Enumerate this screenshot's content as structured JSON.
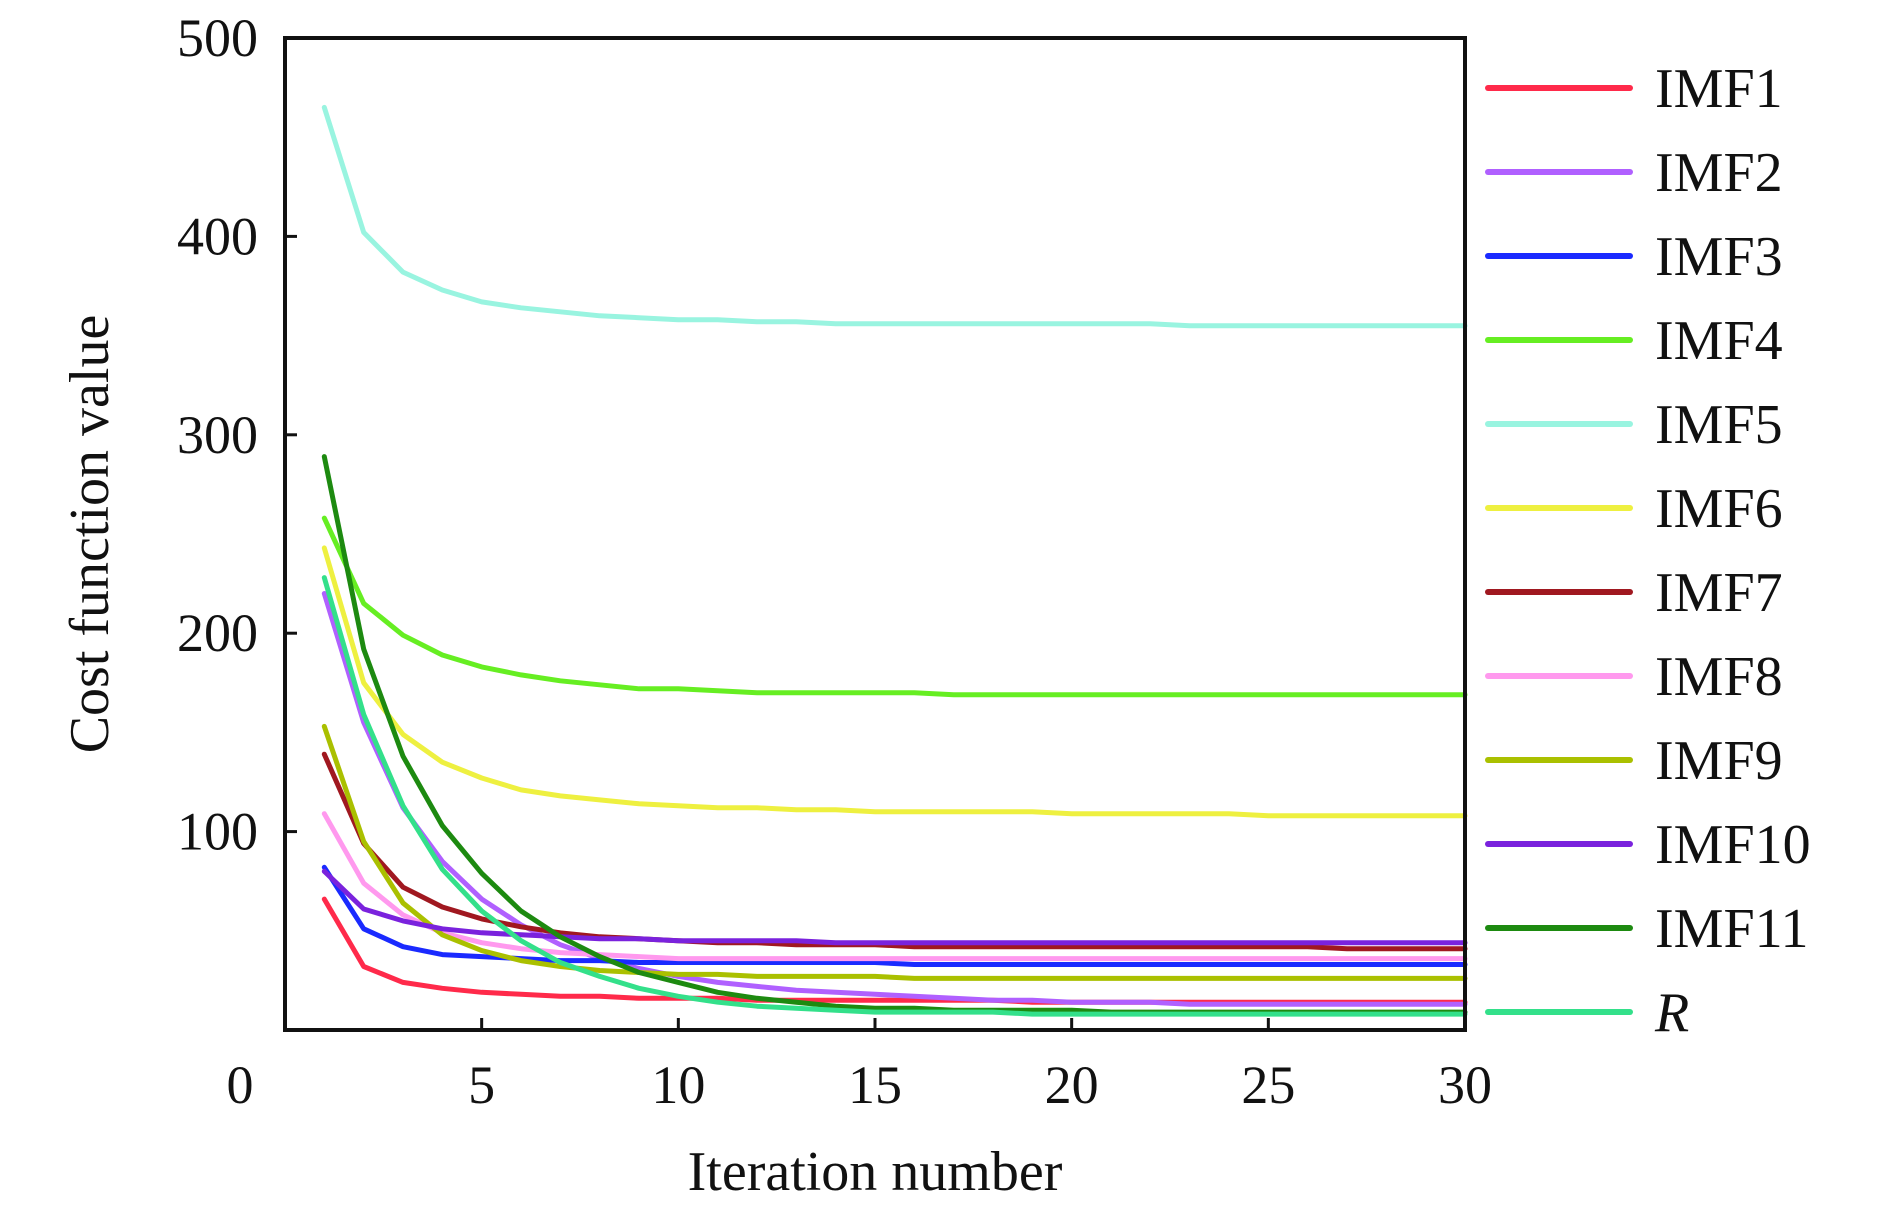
{
  "chart_data": {
    "type": "line",
    "xlabel": "Iteration number",
    "ylabel": "Cost function value",
    "xlim": [
      0,
      30
    ],
    "ylim": [
      0,
      500
    ],
    "xticks": [
      0,
      5,
      10,
      15,
      20,
      25,
      30
    ],
    "yticks": [
      100,
      200,
      300,
      400,
      500
    ],
    "grid": false,
    "legend_position": "right",
    "x": [
      1,
      2,
      3,
      4,
      5,
      6,
      7,
      8,
      9,
      10,
      11,
      12,
      13,
      14,
      15,
      16,
      17,
      18,
      19,
      20,
      21,
      22,
      23,
      24,
      25,
      26,
      27,
      28,
      29,
      30
    ],
    "series": [
      {
        "name": "IMF1",
        "color": "#ff2a4a",
        "values": [
          66,
          32,
          24,
          21,
          19,
          18,
          17,
          17,
          16,
          16,
          16,
          15,
          15,
          15,
          15,
          15,
          15,
          15,
          14,
          14,
          14,
          14,
          14,
          14,
          14,
          14,
          14,
          14,
          14,
          14
        ]
      },
      {
        "name": "IMF2",
        "color": "#b060ff",
        "values": [
          220,
          155,
          112,
          85,
          66,
          53,
          43,
          36,
          31,
          27,
          24,
          22,
          20,
          19,
          18,
          17,
          16,
          15,
          15,
          14,
          14,
          14,
          13,
          13,
          13,
          13,
          13,
          13,
          13,
          13
        ]
      },
      {
        "name": "IMF3",
        "color": "#1a2aff",
        "values": [
          82,
          51,
          42,
          38,
          37,
          36,
          35,
          35,
          34,
          34,
          34,
          34,
          34,
          34,
          34,
          33,
          33,
          33,
          33,
          33,
          33,
          33,
          33,
          33,
          33,
          33,
          33,
          33,
          33,
          33
        ]
      },
      {
        "name": "IMF4",
        "color": "#66ee22",
        "values": [
          258,
          215,
          199,
          189,
          183,
          179,
          176,
          174,
          172,
          172,
          171,
          170,
          170,
          170,
          170,
          170,
          169,
          169,
          169,
          169,
          169,
          169,
          169,
          169,
          169,
          169,
          169,
          169,
          169,
          169
        ]
      },
      {
        "name": "IMF5",
        "color": "#99f4e0",
        "values": [
          465,
          402,
          382,
          373,
          367,
          364,
          362,
          360,
          359,
          358,
          358,
          357,
          357,
          356,
          356,
          356,
          356,
          356,
          356,
          356,
          356,
          356,
          355,
          355,
          355,
          355,
          355,
          355,
          355,
          355
        ]
      },
      {
        "name": "IMF6",
        "color": "#eef040",
        "values": [
          243,
          175,
          149,
          135,
          127,
          121,
          118,
          116,
          114,
          113,
          112,
          112,
          111,
          111,
          110,
          110,
          110,
          110,
          110,
          109,
          109,
          109,
          109,
          109,
          108,
          108,
          108,
          108,
          108,
          108
        ]
      },
      {
        "name": "IMF7",
        "color": "#a01820",
        "values": [
          139,
          94,
          72,
          62,
          56,
          52,
          49,
          47,
          46,
          45,
          44,
          44,
          43,
          43,
          43,
          42,
          42,
          42,
          42,
          42,
          42,
          42,
          42,
          42,
          42,
          42,
          41,
          41,
          41,
          41
        ]
      },
      {
        "name": "IMF8",
        "color": "#ff99ee",
        "values": [
          109,
          74,
          58,
          49,
          44,
          41,
          39,
          38,
          37,
          36,
          36,
          36,
          36,
          36,
          36,
          36,
          36,
          36,
          36,
          36,
          36,
          36,
          36,
          36,
          36,
          36,
          36,
          36,
          36,
          36
        ]
      },
      {
        "name": "IMF9",
        "color": "#aac000",
        "values": [
          153,
          95,
          64,
          48,
          40,
          35,
          32,
          30,
          29,
          28,
          28,
          27,
          27,
          27,
          27,
          26,
          26,
          26,
          26,
          26,
          26,
          26,
          26,
          26,
          26,
          26,
          26,
          26,
          26,
          26
        ]
      },
      {
        "name": "IMF10",
        "color": "#7a22dd",
        "values": [
          80,
          61,
          55,
          51,
          49,
          48,
          47,
          46,
          46,
          45,
          45,
          45,
          45,
          44,
          44,
          44,
          44,
          44,
          44,
          44,
          44,
          44,
          44,
          44,
          44,
          44,
          44,
          44,
          44,
          44
        ]
      },
      {
        "name": "IMF11",
        "color": "#1d8a10",
        "values": [
          289,
          192,
          138,
          103,
          79,
          60,
          47,
          37,
          29,
          24,
          19,
          16,
          14,
          12,
          11,
          11,
          10,
          10,
          10,
          10,
          9,
          9,
          9,
          9,
          9,
          9,
          9,
          9,
          9,
          9
        ]
      },
      {
        "name": "R",
        "color": "#33e08a",
        "values": [
          228,
          159,
          113,
          81,
          60,
          45,
          34,
          27,
          21,
          17,
          14,
          12,
          11,
          10,
          9,
          9,
          9,
          9,
          8,
          8,
          8,
          8,
          8,
          8,
          8,
          8,
          8,
          8,
          8,
          8
        ]
      }
    ]
  }
}
